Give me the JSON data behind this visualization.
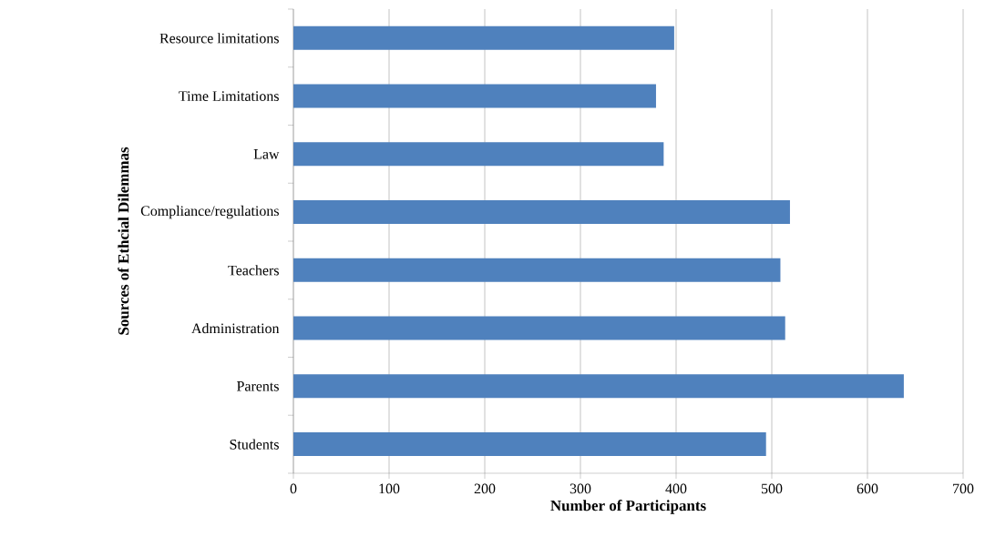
{
  "chart_data": {
    "type": "bar",
    "orientation": "horizontal",
    "xlabel": "Number of Participants",
    "ylabel": "Sources of Ethcial Dilemmas",
    "categories": [
      "Resource limitations",
      "Time Limitations",
      "Law",
      "Compliance/regulations",
      "Teachers",
      "Administration",
      "Parents",
      "Students"
    ],
    "values": [
      398,
      379,
      387,
      519,
      509,
      514,
      638,
      494
    ],
    "color": "#4f81bd",
    "xlim": [
      0,
      700
    ],
    "xticks": [
      0,
      100,
      200,
      300,
      400,
      500,
      600,
      700
    ],
    "grid": "x"
  }
}
